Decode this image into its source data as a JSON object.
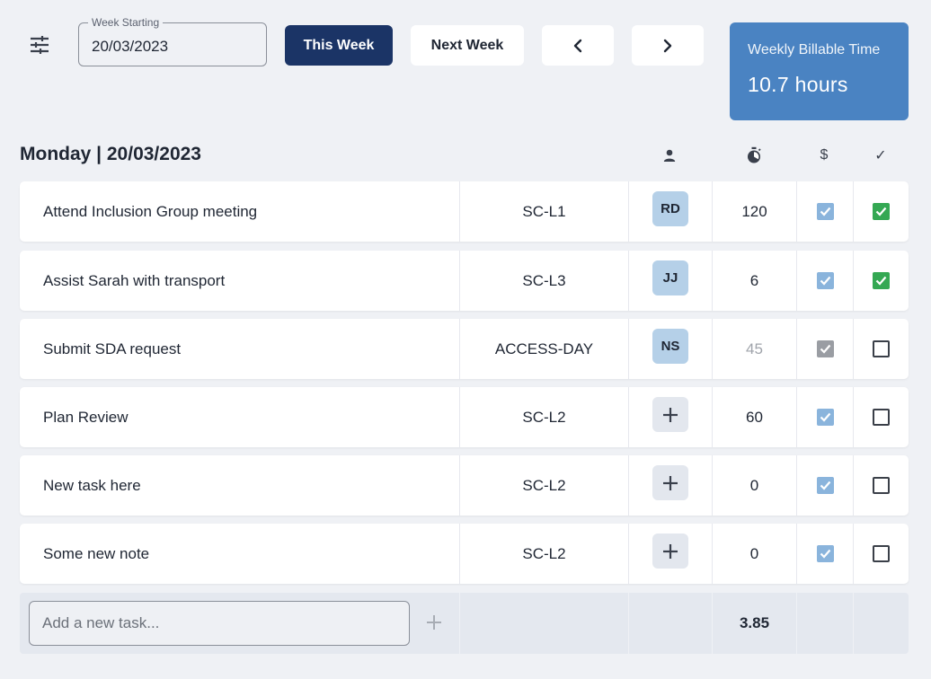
{
  "toolbar": {
    "filter_icon": "sliders-icon",
    "week_field": {
      "label": "Week Starting",
      "value": "20/03/2023"
    },
    "this_week_label": "This Week",
    "next_week_label": "Next Week",
    "prev_icon": "chevron-left-icon",
    "next_icon": "chevron-right-icon"
  },
  "billable": {
    "title": "Weekly Billable Time",
    "value": "10.7 hours"
  },
  "day": {
    "title": "Monday | 20/03/2023",
    "header_icons": [
      "person-icon",
      "timer-icon",
      "dollar-icon",
      "check-icon"
    ],
    "dollar_glyph": "$",
    "check_glyph": "✓"
  },
  "tasks": [
    {
      "name": "Attend Inclusion Group meeting",
      "code": "SC-L1",
      "assignee": "RD",
      "time": "120",
      "billable": "checked-blue",
      "done": "checked-green"
    },
    {
      "name": "Assist Sarah with transport",
      "code": "SC-L3",
      "assignee": "JJ",
      "time": "6",
      "billable": "checked-blue",
      "done": "checked-green"
    },
    {
      "name": "Submit SDA request",
      "code": "ACCESS-DAY",
      "assignee": "NS",
      "time": "45",
      "time_muted": true,
      "billable": "checked-grey",
      "done": "unchecked"
    },
    {
      "name": "Plan Review",
      "code": "SC-L2",
      "assignee": "",
      "time": "60",
      "billable": "checked-blue",
      "done": "unchecked"
    },
    {
      "name": "New task here",
      "code": "SC-L2",
      "assignee": "",
      "time": "0",
      "billable": "checked-blue",
      "done": "unchecked"
    },
    {
      "name": "Some new note",
      "code": "SC-L2",
      "assignee": "",
      "time": "0",
      "billable": "checked-blue",
      "done": "unchecked"
    }
  ],
  "footer": {
    "new_task_placeholder": "Add a new task...",
    "add_icon": "plus-icon",
    "total": "3.85"
  },
  "colors": {
    "primary": "#1b3466",
    "billable_card": "#4a83c2",
    "check_blue": "#8ab4dc",
    "check_green": "#34a853",
    "avatar": "#b5d0e8"
  }
}
